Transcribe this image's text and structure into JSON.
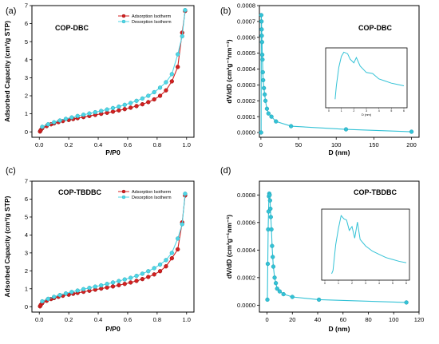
{
  "colors": {
    "adsorption": "#d42020",
    "desorption": "#4fd6e6",
    "psd": "#33c2d6"
  },
  "chart_data": [
    {
      "panel": "(a)",
      "type": "line",
      "title": "COP-DBC",
      "xlabel": "P/P0",
      "ylabel": "Adsorbed Capacity (cm³/g STP)",
      "xlim": [
        -0.05,
        1.05
      ],
      "ylim": [
        -0.3,
        7
      ],
      "xticks": [
        0.0,
        0.2,
        0.4,
        0.6,
        0.8,
        1.0
      ],
      "xtick_labels": [
        "0.0",
        "0.2",
        "0.4",
        "0.6",
        "0.8",
        "1.0"
      ],
      "yticks": [
        0,
        1,
        2,
        3,
        4,
        5,
        6,
        7
      ],
      "ytick_labels": [
        "0",
        "1",
        "2",
        "3",
        "4",
        "5",
        "6",
        "7"
      ],
      "legend_position": "top-right",
      "series": [
        {
          "name": "Adsorption Isotherm",
          "marker": "circle",
          "x": [
            0.005,
            0.01,
            0.02,
            0.05,
            0.08,
            0.1,
            0.13,
            0.16,
            0.2,
            0.23,
            0.26,
            0.3,
            0.34,
            0.38,
            0.42,
            0.46,
            0.5,
            0.54,
            0.58,
            0.62,
            0.66,
            0.7,
            0.74,
            0.78,
            0.82,
            0.86,
            0.9,
            0.94,
            0.97,
            0.99
          ],
          "y": [
            0.02,
            0.1,
            0.2,
            0.32,
            0.42,
            0.47,
            0.54,
            0.6,
            0.66,
            0.71,
            0.76,
            0.82,
            0.88,
            0.94,
            1.0,
            1.06,
            1.12,
            1.19,
            1.26,
            1.34,
            1.43,
            1.53,
            1.65,
            1.8,
            2.0,
            2.3,
            2.8,
            3.6,
            5.5,
            6.7
          ]
        },
        {
          "name": "Desorption Isotherm",
          "marker": "circle",
          "x": [
            0.99,
            0.97,
            0.94,
            0.9,
            0.86,
            0.82,
            0.78,
            0.74,
            0.7,
            0.66,
            0.62,
            0.58,
            0.54,
            0.5,
            0.46,
            0.42,
            0.38,
            0.34,
            0.3,
            0.26,
            0.22,
            0.18,
            0.14,
            0.1,
            0.06,
            0.02
          ],
          "y": [
            6.75,
            5.3,
            4.3,
            3.2,
            2.75,
            2.45,
            2.2,
            2.0,
            1.85,
            1.72,
            1.6,
            1.5,
            1.4,
            1.32,
            1.24,
            1.16,
            1.09,
            1.02,
            0.95,
            0.88,
            0.8,
            0.72,
            0.63,
            0.53,
            0.42,
            0.28
          ]
        }
      ]
    },
    {
      "panel": "(b)",
      "type": "line",
      "title": "COP-DBC",
      "xlabel": "D (nm)",
      "ylabel": "dV/dD (cm³g⁻¹nm⁻¹)",
      "xlim": [
        -2,
        210
      ],
      "ylim": [
        -3e-05,
        0.0008
      ],
      "xticks": [
        0,
        50,
        100,
        150,
        200
      ],
      "xtick_labels": [
        "0",
        "50",
        "100",
        "150",
        "200"
      ],
      "yticks": [
        0,
        0.0001,
        0.0002,
        0.0003,
        0.0004,
        0.0005,
        0.0006,
        0.0007,
        0.0008
      ],
      "ytick_labels": [
        "0.0000",
        "0.0001",
        "0.0002",
        "0.0003",
        "0.0004",
        "0.0005",
        "0.0006",
        "0.0007",
        "0.0008"
      ],
      "series": [
        {
          "marker": "circle",
          "x": [
            0.3,
            0.5,
            0.8,
            1.0,
            1.2,
            1.5,
            1.8,
            2.1,
            2.5,
            3,
            4,
            5,
            6,
            8,
            10,
            14,
            20,
            40,
            113,
            200
          ],
          "y": [
            0.0,
            0.00074,
            0.0007,
            0.00065,
            0.00061,
            0.00057,
            0.00049,
            0.00046,
            0.00038,
            0.00033,
            0.00028,
            0.00024,
            0.0002,
            0.00015,
            0.00012,
            0.0001,
            7e-05,
            4e-05,
            2e-05,
            5e-06
          ]
        }
      ],
      "inset": {
        "xlabel": "D (nm)",
        "xlim": [
          0,
          6
        ],
        "xticks": [
          0,
          1,
          2,
          3,
          4,
          5,
          6
        ],
        "xtick_labels": [
          "0",
          "1",
          "2",
          "3",
          "4",
          "5",
          "6"
        ],
        "ylim": [
          0,
          1
        ],
        "x": [
          0.5,
          0.6,
          0.8,
          1.0,
          1.2,
          1.5,
          1.7,
          2.0,
          2.2,
          2.5,
          3.0,
          3.5,
          4.0,
          4.5,
          5.0,
          5.4,
          6.0
        ],
        "y": [
          0.1,
          0.35,
          0.7,
          0.9,
          0.98,
          0.95,
          0.85,
          0.78,
          0.88,
          0.72,
          0.6,
          0.58,
          0.48,
          0.44,
          0.4,
          0.38,
          0.35
        ]
      }
    },
    {
      "panel": "(c)",
      "type": "line",
      "title": "COP-TBDBC",
      "xlabel": "P/P0",
      "ylabel": "Adsorbed Capacity (cm³/g STP)",
      "xlim": [
        -0.05,
        1.05
      ],
      "ylim": [
        -0.3,
        7
      ],
      "xticks": [
        0.0,
        0.2,
        0.4,
        0.6,
        0.8,
        1.0
      ],
      "xtick_labels": [
        "0.0",
        "0.2",
        "0.4",
        "0.6",
        "0.8",
        "1.0"
      ],
      "yticks": [
        0,
        1,
        2,
        3,
        4,
        5,
        6,
        7
      ],
      "ytick_labels": [
        "0",
        "1",
        "2",
        "3",
        "4",
        "5",
        "6",
        "7"
      ],
      "legend_position": "top-right",
      "series": [
        {
          "name": "Adsorption Isotherm",
          "marker": "circle",
          "x": [
            0.005,
            0.01,
            0.02,
            0.05,
            0.08,
            0.1,
            0.13,
            0.16,
            0.2,
            0.23,
            0.26,
            0.3,
            0.34,
            0.38,
            0.42,
            0.46,
            0.5,
            0.54,
            0.58,
            0.62,
            0.66,
            0.7,
            0.74,
            0.78,
            0.82,
            0.86,
            0.9,
            0.94,
            0.97,
            0.99
          ],
          "y": [
            0.02,
            0.1,
            0.2,
            0.33,
            0.43,
            0.48,
            0.55,
            0.61,
            0.67,
            0.72,
            0.77,
            0.83,
            0.89,
            0.95,
            1.01,
            1.07,
            1.13,
            1.2,
            1.27,
            1.35,
            1.44,
            1.54,
            1.66,
            1.8,
            1.98,
            2.25,
            2.7,
            3.2,
            4.7,
            6.2
          ]
        },
        {
          "name": "Desorption Isotherm",
          "marker": "circle",
          "x": [
            0.99,
            0.97,
            0.94,
            0.9,
            0.86,
            0.82,
            0.78,
            0.74,
            0.7,
            0.66,
            0.62,
            0.58,
            0.54,
            0.5,
            0.46,
            0.42,
            0.38,
            0.34,
            0.3,
            0.26,
            0.22,
            0.18,
            0.14,
            0.1,
            0.06,
            0.02
          ],
          "y": [
            6.3,
            4.6,
            3.8,
            3.0,
            2.6,
            2.35,
            2.15,
            1.98,
            1.84,
            1.72,
            1.61,
            1.52,
            1.43,
            1.35,
            1.27,
            1.19,
            1.12,
            1.05,
            0.98,
            0.9,
            0.82,
            0.74,
            0.65,
            0.55,
            0.44,
            0.3
          ]
        }
      ]
    },
    {
      "panel": "(d)",
      "type": "line",
      "title": "COP-TBDBC",
      "xlabel": "D (nm)",
      "ylabel": "dV/dD (cm³g⁻¹nm⁻¹)",
      "xlim": [
        -6,
        120
      ],
      "ylim": [
        -5e-05,
        0.0009
      ],
      "xticks": [
        0,
        20,
        40,
        60,
        80,
        100,
        120
      ],
      "xtick_labels": [
        "0",
        "20",
        "40",
        "60",
        "80",
        "100",
        "120"
      ],
      "yticks": [
        0,
        0.0002,
        0.0004,
        0.0006,
        0.0008
      ],
      "ytick_labels": [
        "0.0000",
        "0.0002",
        "0.0004",
        "0.0006",
        "0.0008"
      ],
      "series": [
        {
          "marker": "circle",
          "x": [
            0.3,
            0.6,
            0.9,
            1.2,
            1.5,
            1.8,
            2.1,
            2.4,
            2.7,
            3.0,
            3.5,
            4.0,
            4.5,
            5.0,
            6.0,
            7.0,
            8.0,
            10,
            13,
            20,
            41,
            110
          ],
          "y": [
            4e-05,
            0.0003,
            0.00055,
            0.00068,
            0.00079,
            0.00081,
            0.0008,
            0.00076,
            0.0007,
            0.00064,
            0.00055,
            0.00043,
            0.00035,
            0.00028,
            0.0002,
            0.00016,
            0.00012,
            0.0001,
            8e-05,
            6e-05,
            4e-05,
            2e-05
          ]
        }
      ],
      "inset": {
        "xlabel": "",
        "xlim": [
          0,
          6
        ],
        "xticks": [
          0,
          1,
          2,
          3,
          4,
          5,
          6
        ],
        "xtick_labels": [
          "0",
          "1",
          "2",
          "3",
          "4",
          "5",
          "6"
        ],
        "ylim": [
          0,
          1
        ],
        "x": [
          0.5,
          0.6,
          0.8,
          1.0,
          1.2,
          1.4,
          1.6,
          1.8,
          2.0,
          2.2,
          2.4,
          2.6,
          3.0,
          3.5,
          4.0,
          4.5,
          5.0,
          5.5,
          6.0
        ],
        "y": [
          0.05,
          0.1,
          0.5,
          0.75,
          0.95,
          0.9,
          0.88,
          0.72,
          0.78,
          0.6,
          0.85,
          0.58,
          0.48,
          0.4,
          0.35,
          0.3,
          0.27,
          0.24,
          0.22
        ]
      }
    }
  ]
}
